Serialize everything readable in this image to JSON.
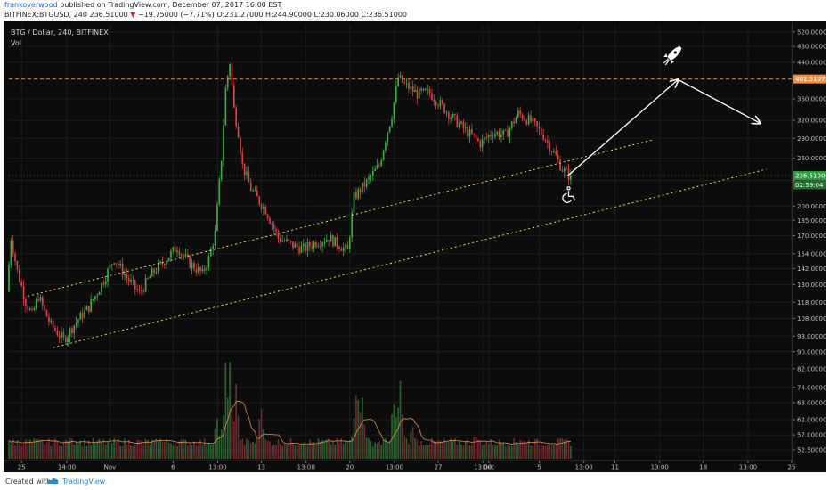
{
  "header": {
    "author": "frankoverwood",
    "published": "published on TradingView.com, December 07, 2017 16:00 EST",
    "symbol": "BITFINEX:BTGUSD, 240",
    "last": "236.51000",
    "change_arrow": "▼",
    "change": "−19.75000 (−7.71%)",
    "ohlc": "O:231.27000 H:244.90000 L:230.06000 C:236.51000"
  },
  "chart": {
    "title": "BTG / Dollar, 240, BITFINEX",
    "volume_label": "Vol",
    "price_tag": "236.51000",
    "countdown_tag": "02:59:04",
    "level_tag": "401.51071"
  },
  "footer": {
    "created_with": "Created with",
    "brand": "TradingView"
  },
  "icons": {
    "rocket": "rocket-icon",
    "wheelchair": "wheelchair-icon",
    "logo": "tradingview-logo-icon"
  },
  "colors": {
    "background": "#0c0c0c",
    "up": "#3cb043",
    "down": "#d9434c",
    "trend": "#e8e35a",
    "level": "#f09040",
    "price_tag": "#2e9a3e",
    "volume_ma": "#f0a060"
  },
  "chart_data": {
    "type": "candlestick",
    "title": "BTG / Dollar, 240, BITFINEX",
    "y_scale": "log",
    "ylim": [
      49.5,
      540
    ],
    "y_ticks": [
      "520.00000",
      "480.00000",
      "440.00000",
      "400.00000",
      "360.00000",
      "320.00000",
      "290.00000",
      "260.00000",
      "230.00000",
      "200.00000",
      "185.00000",
      "170.00000",
      "154.00000",
      "142.00000",
      "130.00000",
      "118.00000",
      "108.00000",
      "98.00000",
      "90.00000",
      "82.00000",
      "74.00000",
      "68.00000",
      "62.00000",
      "57.00000",
      "52.50000"
    ],
    "x_ticks": [
      "25",
      "14:00",
      "Nov",
      "6",
      "13:00",
      "13",
      "13:00",
      "20",
      "13:00",
      "27",
      "13:00",
      "Dec",
      "5",
      "13:00",
      "11",
      "13:00",
      "18",
      "13:00",
      "25"
    ],
    "x_start": "2017-10-24",
    "x_end": "2017-12-25",
    "last_close": 236.51,
    "horizontal_level": 401.51,
    "price_path": [
      [
        "2017-10-24 00:00",
        125
      ],
      [
        "2017-10-24 08:00",
        168
      ],
      [
        "2017-10-24 20:00",
        140
      ],
      [
        "2017-10-25 12:00",
        118
      ],
      [
        "2017-10-26 00:00",
        110
      ],
      [
        "2017-10-26 12:00",
        122
      ],
      [
        "2017-10-27 00:00",
        112
      ],
      [
        "2017-10-27 12:00",
        104
      ],
      [
        "2017-10-28 12:00",
        96
      ],
      [
        "2017-10-29 12:00",
        106
      ],
      [
        "2017-10-30 12:00",
        115
      ],
      [
        "2017-10-31 12:00",
        130
      ],
      [
        "2017-11-01 12:00",
        150
      ],
      [
        "2017-11-02 12:00",
        135
      ],
      [
        "2017-11-03 12:00",
        124
      ],
      [
        "2017-11-04 12:00",
        138
      ],
      [
        "2017-11-05 12:00",
        148
      ],
      [
        "2017-11-06 12:00",
        160
      ],
      [
        "2017-11-07 00:00",
        152
      ],
      [
        "2017-11-07 12:00",
        146
      ],
      [
        "2017-11-08 12:00",
        138
      ],
      [
        "2017-11-09 00:00",
        150
      ],
      [
        "2017-11-09 12:00",
        172
      ],
      [
        "2017-11-10 00:00",
        260
      ],
      [
        "2017-11-10 08:00",
        380
      ],
      [
        "2017-11-10 16:00",
        440
      ],
      [
        "2017-11-11 00:00",
        340
      ],
      [
        "2017-11-11 08:00",
        300
      ],
      [
        "2017-11-11 16:00",
        250
      ],
      [
        "2017-11-12 08:00",
        220
      ],
      [
        "2017-11-13 00:00",
        205
      ],
      [
        "2017-11-13 12:00",
        196
      ],
      [
        "2017-11-14 12:00",
        168
      ],
      [
        "2017-11-15 12:00",
        162
      ],
      [
        "2017-11-16 12:00",
        158
      ],
      [
        "2017-11-17 12:00",
        164
      ],
      [
        "2017-11-18 12:00",
        168
      ],
      [
        "2017-11-19 12:00",
        160
      ],
      [
        "2017-11-20 00:00",
        156
      ],
      [
        "2017-11-20 12:00",
        210
      ],
      [
        "2017-11-21 12:00",
        228
      ],
      [
        "2017-11-22 12:00",
        250
      ],
      [
        "2017-11-23 00:00",
        290
      ],
      [
        "2017-11-23 12:00",
        330
      ],
      [
        "2017-11-24 00:00",
        405
      ],
      [
        "2017-11-24 12:00",
        390
      ],
      [
        "2017-11-25 12:00",
        370
      ],
      [
        "2017-11-26 12:00",
        372
      ],
      [
        "2017-11-27 12:00",
        345
      ],
      [
        "2017-11-28 12:00",
        320
      ],
      [
        "2017-11-29 12:00",
        300
      ],
      [
        "2017-11-30 12:00",
        282
      ],
      [
        "2017-12-01 12:00",
        300
      ],
      [
        "2017-12-02 12:00",
        295
      ],
      [
        "2017-12-03 12:00",
        332
      ],
      [
        "2017-12-04 12:00",
        318
      ],
      [
        "2017-12-05 12:00",
        295
      ],
      [
        "2017-12-06 12:00",
        262
      ],
      [
        "2017-12-07 00:00",
        245
      ],
      [
        "2017-12-07 12:00",
        236.51
      ]
    ],
    "volume_peaks": [
      [
        "2017-10-24 00:00",
        57
      ],
      [
        "2017-10-29 00:00",
        55
      ],
      [
        "2017-11-05 00:00",
        58
      ],
      [
        "2017-11-09 12:00",
        65
      ],
      [
        "2017-11-10 04:00",
        86
      ],
      [
        "2017-11-10 12:00",
        90
      ],
      [
        "2017-11-11 00:00",
        78
      ],
      [
        "2017-11-13 00:00",
        70
      ],
      [
        "2017-11-20 12:00",
        82
      ],
      [
        "2017-11-21 00:00",
        75
      ],
      [
        "2017-11-23 12:00",
        72
      ],
      [
        "2017-11-24 00:00",
        78
      ],
      [
        "2017-11-25 00:00",
        64
      ],
      [
        "2017-11-30 00:00",
        60
      ],
      [
        "2017-12-03 12:00",
        57
      ]
    ],
    "trendlines": [
      {
        "from": [
          "2017-10-25 12:00",
          122
        ],
        "to": [
          "2017-12-23 00:00",
          336
        ]
      },
      {
        "from": [
          "2017-10-27 12:00",
          92
        ],
        "to": [
          "2017-12-23 00:00",
          336
        ],
        "parallel_of_upper_start": [
          "2017-11-20 00:00",
          156
        ]
      }
    ],
    "annotations": [
      {
        "type": "arrow",
        "from": [
          "2017-12-07 06:00",
          236
        ],
        "to": [
          "2017-12-16 00:00",
          400
        ]
      },
      {
        "type": "arrow",
        "from": [
          "2017-12-16 00:00",
          400
        ],
        "to": [
          "2017-12-22 12:00",
          315
        ]
      },
      {
        "type": "icon",
        "name": "rocket",
        "at": [
          "2017-12-15 12:00",
          455
        ]
      },
      {
        "type": "icon",
        "name": "wheelchair",
        "at": [
          "2017-12-07 08:00",
          212
        ]
      }
    ]
  }
}
